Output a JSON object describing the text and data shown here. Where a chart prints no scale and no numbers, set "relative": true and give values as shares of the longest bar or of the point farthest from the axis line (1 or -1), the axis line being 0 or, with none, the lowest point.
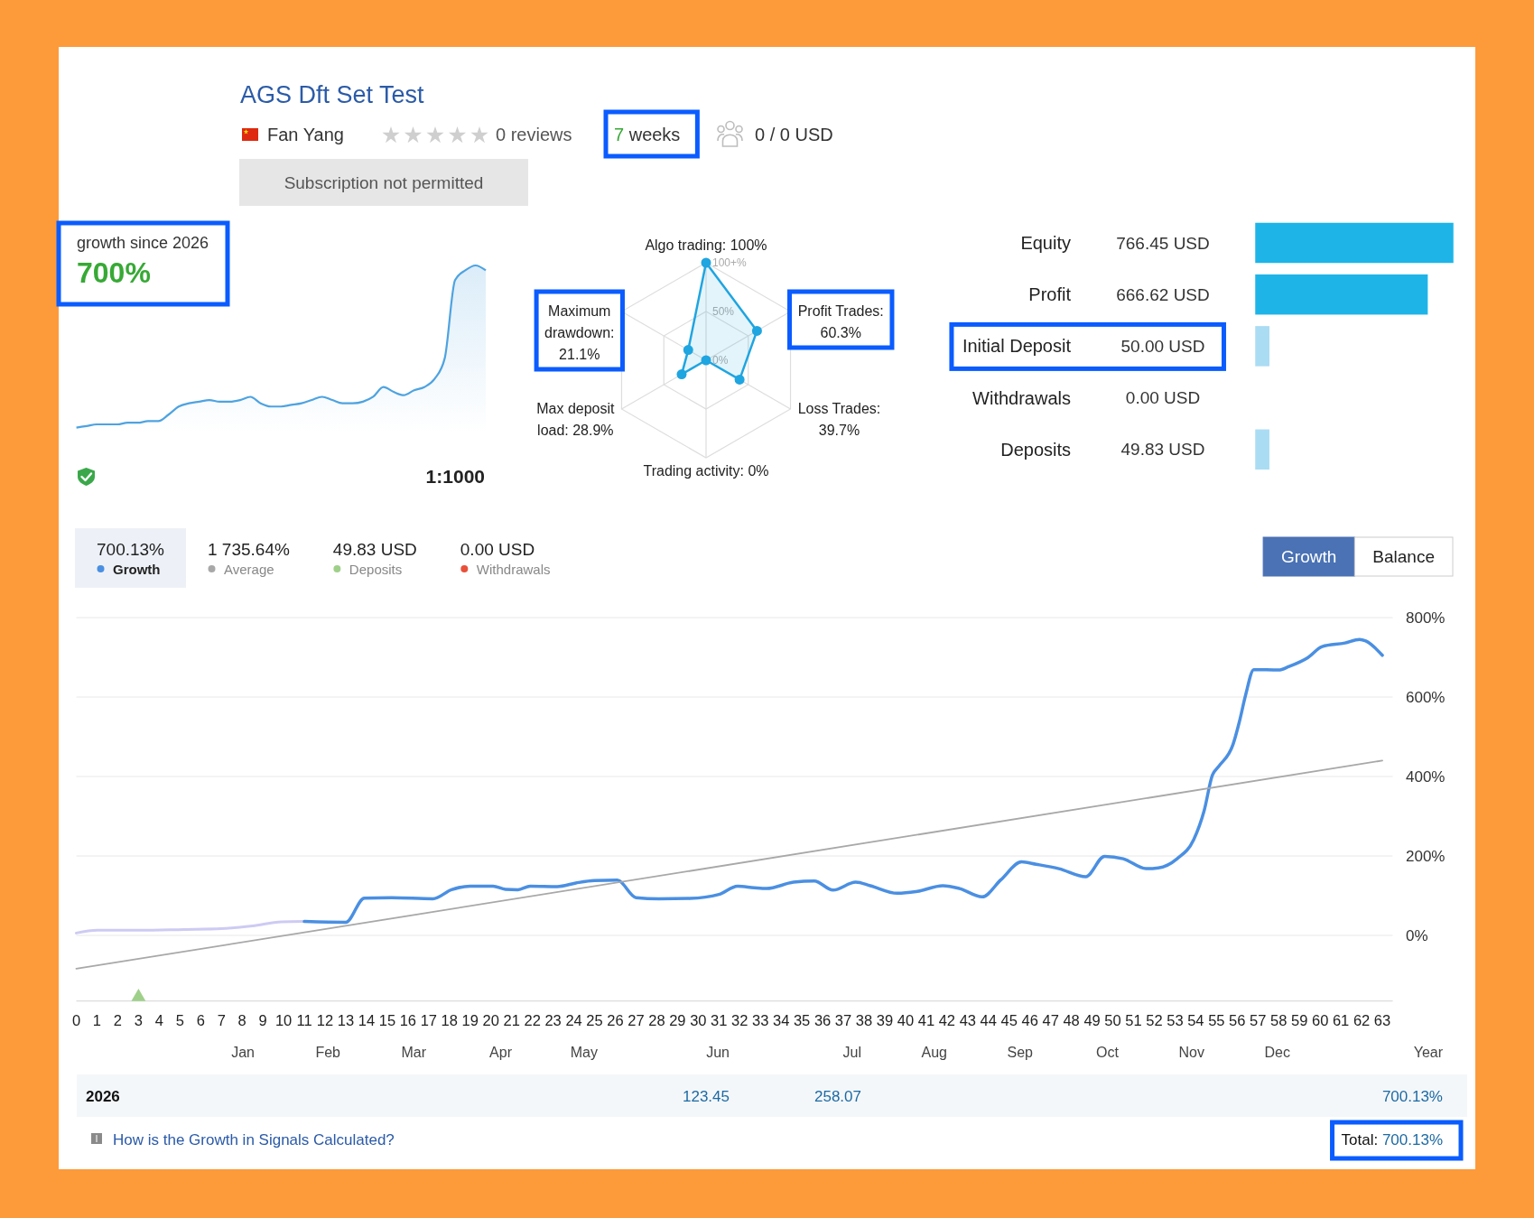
{
  "chart_data": [
    {
      "type": "other",
      "title": "AGS Dft Set Test",
      "annotations": [
        "Fan Yang",
        "0 reviews",
        "7 weeks",
        "0 / 0 USD",
        "Subscription not permitted"
      ]
    },
    {
      "type": "area",
      "relative": true,
      "title": "growth since 2026",
      "subtitle": "700%",
      "color": "#4ea3e0",
      "categories": [
        null,
        null,
        null,
        null,
        null,
        null,
        null,
        null,
        null,
        null,
        null,
        null,
        null,
        null,
        null,
        null,
        null,
        null,
        null,
        null,
        null,
        null,
        null,
        null,
        null,
        null,
        null,
        null,
        null,
        null,
        null,
        null,
        null,
        null,
        null,
        null,
        null,
        null,
        null,
        null,
        null
      ],
      "values": [
        0,
        0.01,
        0.02,
        0.02,
        0.02,
        0.03,
        0.03,
        0.04,
        0.04,
        0.08,
        0.13,
        0.15,
        0.16,
        0.17,
        0.16,
        0.16,
        0.17,
        0.19,
        0.15,
        0.13,
        0.13,
        0.14,
        0.15,
        0.17,
        0.19,
        0.17,
        0.15,
        0.15,
        0.16,
        0.19,
        0.25,
        0.22,
        0.2,
        0.23,
        0.25,
        0.3,
        0.43,
        0.91,
        0.97,
        1,
        0.97
      ],
      "annotations": [
        "1:1000"
      ]
    },
    {
      "type": "radar",
      "categories": [
        "Algo trading: 100%",
        "Profit Trades: 60.3%",
        "Loss Trades: 39.7%",
        "Trading activity: 0%",
        "Max deposit load: 28.9%",
        "Maximum drawdown: 21.1%"
      ],
      "series": [
        {
          "color": "#1fa5e0",
          "values": [
            100,
            60.3,
            39.7,
            0,
            28.9,
            21.1
          ]
        }
      ],
      "ylim": [
        0,
        100
      ],
      "yticks": [
        {
          "value": 0,
          "label": "0%"
        },
        {
          "value": 50,
          "label": "50%"
        },
        {
          "value": 100,
          "label": "100+%"
        }
      ],
      "grid": true,
      "marker": "circle"
    },
    {
      "type": "bar",
      "orientation": "horizontal",
      "categories": [
        "Equity",
        "Profit",
        "Initial Deposit",
        "Withdrawals",
        "Deposits"
      ],
      "values": [
        766.45,
        666.62,
        50.0,
        0.0,
        49.83
      ],
      "colors": [
        "#1fb4e8",
        "#1fb4e8",
        "#aadcf4",
        "#aadcf4",
        "#aadcf4"
      ],
      "value_labels": [
        "766.45 USD",
        "666.62 USD",
        "50.00 USD",
        "0.00 USD",
        "49.83 USD"
      ],
      "tick_labels": "y"
    },
    {
      "type": "line",
      "series": [
        {
          "color": "#cdcbf3",
          "x": [
            0,
            1,
            3,
            5.2,
            7,
            8.5,
            9.9,
            11
          ],
          "values": [
            6,
            13,
            13,
            15,
            17,
            24,
            34,
            35
          ]
        },
        {
          "name": "Growth",
          "color": "#4a8fe2",
          "x": [
            11,
            13,
            13.9,
            15.2,
            17.2,
            18.1,
            19,
            20.1,
            20.7,
            21.3,
            21.9,
            23.2,
            24.1,
            25,
            26.1,
            27,
            28.1,
            29.6,
            31,
            31.9,
            32.7,
            33.3,
            34.6,
            35.6,
            36.5,
            37.6,
            38.3,
            39.6,
            40.5,
            41.8,
            42.6,
            43.7,
            44.6,
            45.6,
            46.3,
            47.4,
            48.7,
            49.6,
            50.5,
            51.6,
            52.2,
            53.1,
            53.9,
            54.4,
            54.8,
            55.1,
            55.8,
            56.1,
            56.4,
            56.8,
            58,
            58.5,
            59.4,
            60.1,
            61.2,
            61.9,
            62.2,
            63
          ],
          "values": [
            35,
            33,
            94,
            95,
            92,
            115,
            124,
            124,
            116,
            115,
            124,
            123,
            132,
            138,
            139,
            95,
            92,
            93,
            103,
            124,
            120,
            118,
            134,
            137,
            114,
            134,
            125,
            106,
            110,
            125,
            118,
            97,
            140,
            185,
            179,
            168,
            148,
            199,
            193,
            168,
            170,
            193,
            241,
            313,
            403,
            425,
            481,
            537,
            604,
            669,
            668,
            677,
            699,
            727,
            736,
            745,
            741,
            705
          ]
        },
        {
          "name": "Average",
          "color": "#a8a8a8",
          "x": [
            0,
            63
          ],
          "values": [
            -84,
            440
          ]
        },
        {
          "name": "Deposits",
          "type": "scatter",
          "marker": "triangle",
          "color": "#9fd08a",
          "x": [
            3
          ],
          "values": [
            -155
          ]
        },
        {
          "name": "Withdrawals",
          "type": "scatter",
          "color": "#e8503a"
        }
      ],
      "xlim": [
        0,
        63.5
      ],
      "xticks": [
        0,
        1,
        2,
        3,
        4,
        5,
        6,
        7,
        8,
        9,
        10,
        11,
        12,
        13,
        14,
        15,
        16,
        17,
        18,
        19,
        20,
        21,
        22,
        23,
        24,
        25,
        26,
        27,
        28,
        29,
        30,
        31,
        32,
        33,
        34,
        35,
        36,
        37,
        38,
        39,
        40,
        41,
        42,
        43,
        44,
        45,
        46,
        47,
        48,
        49,
        50,
        51,
        52,
        53,
        54,
        55,
        56,
        57,
        58,
        59,
        60,
        61,
        62,
        63
      ],
      "ylim": [
        -165,
        800
      ],
      "yticks": [
        {
          "value": 0,
          "label": "0%"
        },
        {
          "value": 200,
          "label": "200%"
        },
        {
          "value": 400,
          "label": "400%"
        },
        {
          "value": 600,
          "label": "600%"
        },
        {
          "value": 800,
          "label": "800%"
        }
      ],
      "grid": "y",
      "legend": "top left",
      "annotations": [
        "700.13%",
        "1 735.64%",
        "49.83 USD",
        "0.00 USD",
        "Growth",
        "Balance"
      ]
    },
    {
      "type": "other",
      "categories": [
        "Jan",
        "Feb",
        "Mar",
        "Apr",
        "May",
        "Jun",
        "Jul",
        "Aug",
        "Sep",
        "Oct",
        "Nov",
        "Dec",
        "Year"
      ],
      "y_categories": [
        "2026"
      ],
      "cell_labels": [
        [
          null,
          null,
          null,
          null,
          null,
          "123.45",
          "258.07",
          null,
          null,
          null,
          null,
          null,
          "700.13%"
        ]
      ],
      "annotations": [
        "How is the Growth in Signals Calculated?",
        "Total: 700.13%"
      ]
    }
  ]
}
